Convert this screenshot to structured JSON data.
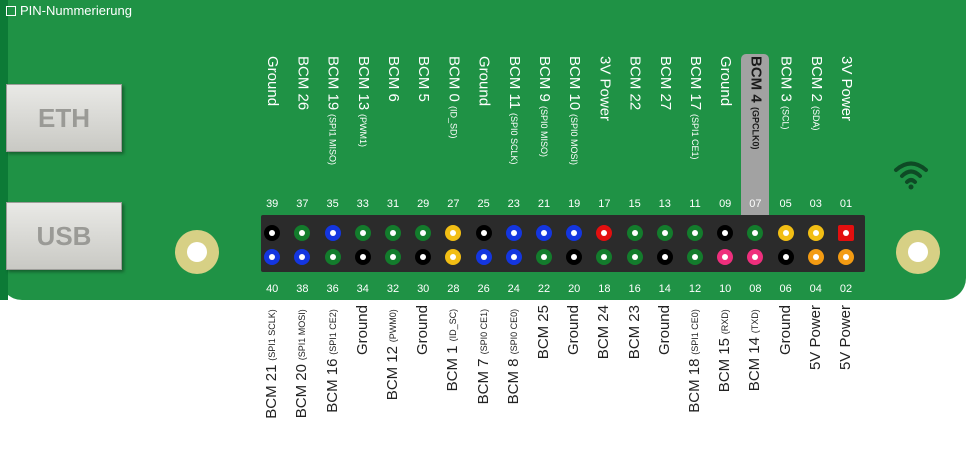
{
  "title": "PIN-Nummerierung",
  "ports": {
    "eth": "ETH",
    "usb": "USB"
  },
  "wifi_icon": "wifi-icon",
  "highlighted_pin": "07",
  "colors": {
    "board": "#1f9245",
    "header": "#2b2b2b",
    "ground": "#000000",
    "gpio": "#137c2c",
    "spi": "#1436e0",
    "i2c_gpclk": "#f2be14",
    "power3v": "#e30f0f",
    "power5v": "#f39b12",
    "uart": "#ef2f7d",
    "highlight": "#a2a2a2"
  },
  "top_pins": [
    {
      "num": "01",
      "label": "3V Power",
      "sub": "",
      "color": "#e30f0f",
      "square": true
    },
    {
      "num": "03",
      "label": "BCM 2",
      "sub": "(SDA)",
      "color": "#f2be14"
    },
    {
      "num": "05",
      "label": "BCM 3",
      "sub": "(SCL)",
      "color": "#f2be14"
    },
    {
      "num": "07",
      "label": "BCM 4",
      "sub": "(GPCLK0)",
      "color": "#137c2c"
    },
    {
      "num": "09",
      "label": "Ground",
      "sub": "",
      "color": "#000000"
    },
    {
      "num": "11",
      "label": "BCM 17",
      "sub": "(SPI1 CE1)",
      "color": "#137c2c"
    },
    {
      "num": "13",
      "label": "BCM 27",
      "sub": "",
      "color": "#137c2c"
    },
    {
      "num": "15",
      "label": "BCM 22",
      "sub": "",
      "color": "#137c2c"
    },
    {
      "num": "17",
      "label": "3V Power",
      "sub": "",
      "color": "#e30f0f"
    },
    {
      "num": "19",
      "label": "BCM 10",
      "sub": "(SPI0 MOSI)",
      "color": "#1436e0"
    },
    {
      "num": "21",
      "label": "BCM 9",
      "sub": "(SPI0 MISO)",
      "color": "#1436e0"
    },
    {
      "num": "23",
      "label": "BCM 11",
      "sub": "(SPI0 SCLK)",
      "color": "#1436e0"
    },
    {
      "num": "25",
      "label": "Ground",
      "sub": "",
      "color": "#000000"
    },
    {
      "num": "27",
      "label": "BCM 0",
      "sub": "(ID_SD)",
      "color": "#f2be14"
    },
    {
      "num": "29",
      "label": "BCM 5",
      "sub": "",
      "color": "#137c2c"
    },
    {
      "num": "31",
      "label": "BCM 6",
      "sub": "",
      "color": "#137c2c"
    },
    {
      "num": "33",
      "label": "BCM 13",
      "sub": "(PWM1)",
      "color": "#137c2c"
    },
    {
      "num": "35",
      "label": "BCM 19",
      "sub": "(SPI1 MISO)",
      "color": "#1436e0"
    },
    {
      "num": "37",
      "label": "BCM 26",
      "sub": "",
      "color": "#137c2c"
    },
    {
      "num": "39",
      "label": "Ground",
      "sub": "",
      "color": "#000000"
    }
  ],
  "bottom_pins": [
    {
      "num": "02",
      "label": "5V Power",
      "sub": "",
      "color": "#f39b12"
    },
    {
      "num": "04",
      "label": "5V Power",
      "sub": "",
      "color": "#f39b12"
    },
    {
      "num": "06",
      "label": "Ground",
      "sub": "",
      "color": "#000000"
    },
    {
      "num": "08",
      "label": "BCM 14",
      "sub": "(TXD)",
      "color": "#ef2f7d"
    },
    {
      "num": "10",
      "label": "BCM 15",
      "sub": "(RXD)",
      "color": "#ef2f7d"
    },
    {
      "num": "12",
      "label": "BCM 18",
      "sub": "(SPI1 CE0)",
      "color": "#137c2c"
    },
    {
      "num": "14",
      "label": "Ground",
      "sub": "",
      "color": "#000000"
    },
    {
      "num": "16",
      "label": "BCM 23",
      "sub": "",
      "color": "#137c2c"
    },
    {
      "num": "18",
      "label": "BCM 24",
      "sub": "",
      "color": "#137c2c"
    },
    {
      "num": "20",
      "label": "Ground",
      "sub": "",
      "color": "#000000"
    },
    {
      "num": "22",
      "label": "BCM 25",
      "sub": "",
      "color": "#137c2c"
    },
    {
      "num": "24",
      "label": "BCM 8",
      "sub": "(SPI0 CE0)",
      "color": "#1436e0"
    },
    {
      "num": "26",
      "label": "BCM 7",
      "sub": "(SPI0 CE1)",
      "color": "#1436e0"
    },
    {
      "num": "28",
      "label": "BCM 1",
      "sub": "(ID_SC)",
      "color": "#f2be14"
    },
    {
      "num": "30",
      "label": "Ground",
      "sub": "",
      "color": "#000000"
    },
    {
      "num": "32",
      "label": "BCM 12",
      "sub": "(PWM0)",
      "color": "#137c2c"
    },
    {
      "num": "34",
      "label": "Ground",
      "sub": "",
      "color": "#000000"
    },
    {
      "num": "36",
      "label": "BCM 16",
      "sub": "(SPI1 CE2)",
      "color": "#137c2c"
    },
    {
      "num": "38",
      "label": "BCM 20",
      "sub": "(SPI1 MOSI)",
      "color": "#1436e0"
    },
    {
      "num": "40",
      "label": "BCM 21",
      "sub": "(SPI1 SCLK)",
      "color": "#1436e0"
    }
  ]
}
